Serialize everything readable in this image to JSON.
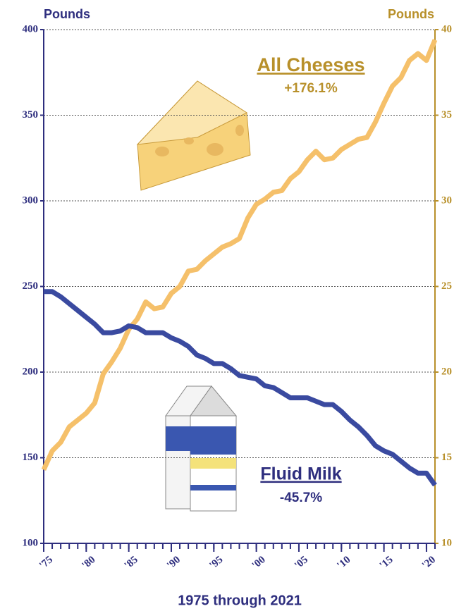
{
  "chart_data": {
    "type": "line",
    "ylabel": "Pounds",
    "y2label": "Pounds",
    "xlabel": "1975 through 2021",
    "annotations": [
      "All Cheeses",
      "+176.1%",
      "Fluid Milk",
      "-45.7%"
    ],
    "x": [
      1975,
      1976,
      1977,
      1978,
      1979,
      1980,
      1981,
      1982,
      1983,
      1984,
      1985,
      1986,
      1987,
      1988,
      1989,
      1990,
      1991,
      1992,
      1993,
      1994,
      1995,
      1996,
      1997,
      1998,
      1999,
      2000,
      2001,
      2002,
      2003,
      2004,
      2005,
      2006,
      2007,
      2008,
      2009,
      2010,
      2011,
      2012,
      2013,
      2014,
      2015,
      2016,
      2017,
      2018,
      2019,
      2020,
      2021
    ],
    "xlim": [
      1975,
      2021
    ],
    "xticks": [
      {
        "value": 1975,
        "label": "'75"
      },
      {
        "value": 1980,
        "label": "'80"
      },
      {
        "value": 1985,
        "label": "'85"
      },
      {
        "value": 1990,
        "label": "'90"
      },
      {
        "value": 1995,
        "label": "'95"
      },
      {
        "value": 2000,
        "label": "'00"
      },
      {
        "value": 2005,
        "label": "'05"
      },
      {
        "value": 2010,
        "label": "'10"
      },
      {
        "value": 2015,
        "label": "'15"
      },
      {
        "value": 2020,
        "label": "'20"
      }
    ],
    "ylim": [
      100,
      400
    ],
    "yticks": [
      100,
      150,
      200,
      250,
      300,
      350,
      400
    ],
    "y2lim": [
      10,
      40
    ],
    "y2ticks": [
      10,
      15,
      20,
      25,
      30,
      35,
      40
    ],
    "grid": true,
    "series": [
      {
        "name": "Fluid Milk",
        "color": "#3a4aa0",
        "values": [
          247,
          247,
          244,
          240,
          236,
          232,
          228,
          223,
          223,
          224,
          227,
          226,
          223,
          223,
          223,
          220,
          218,
          215,
          210,
          208,
          205,
          205,
          202,
          198,
          197,
          196,
          192,
          191,
          188,
          185,
          185,
          185,
          183,
          181,
          181,
          177,
          172,
          168,
          163,
          157,
          154,
          152,
          148,
          144,
          141,
          141,
          134
        ]
      },
      {
        "name": "All Cheeses",
        "color": "#f5c06a",
        "axis": "y2",
        "values": [
          14.3,
          15.4,
          15.9,
          16.8,
          17.2,
          17.6,
          18.2,
          19.9,
          20.6,
          21.4,
          22.5,
          23.1,
          24.1,
          23.7,
          23.8,
          24.6,
          25.0,
          25.9,
          26.0,
          26.5,
          26.9,
          27.3,
          27.5,
          27.8,
          29.0,
          29.8,
          30.1,
          30.5,
          30.6,
          31.3,
          31.7,
          32.4,
          32.9,
          32.4,
          32.5,
          33.0,
          33.3,
          33.6,
          33.7,
          34.6,
          35.7,
          36.7,
          37.2,
          38.2,
          38.6,
          38.2,
          39.4
        ]
      }
    ]
  }
}
